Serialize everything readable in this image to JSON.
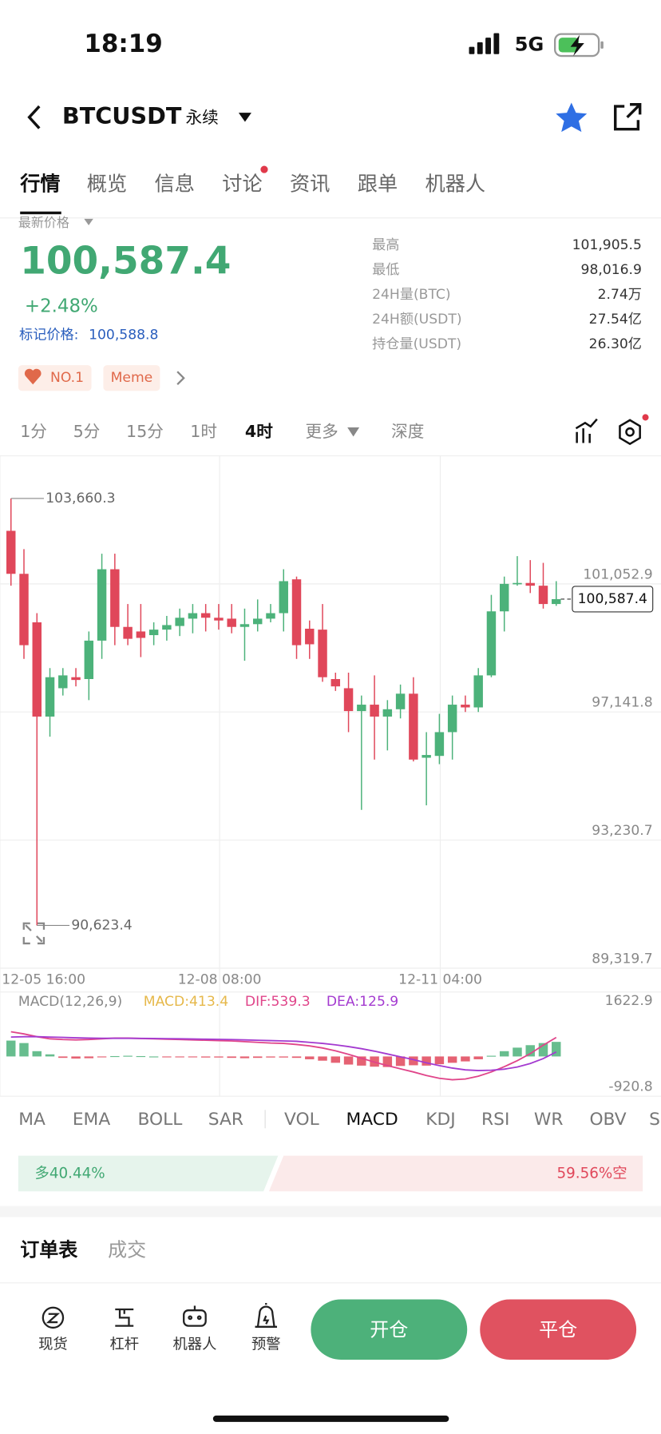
{
  "status_bar": {
    "time": "18:19",
    "network": "5G"
  },
  "header": {
    "symbol": "BTCUSDT",
    "contract": "永续"
  },
  "tabs": [
    "行情",
    "概览",
    "信息",
    "讨论",
    "资讯",
    "跟单",
    "机器人"
  ],
  "price": {
    "label": "最新价格",
    "last": "100,587.4",
    "change": "+2.48%",
    "mark_label": "标记价格:",
    "mark": "100,588.8"
  },
  "stats": [
    {
      "label": "最高",
      "value": "101,905.5"
    },
    {
      "label": "最低",
      "value": "98,016.9"
    },
    {
      "label": "24H量(BTC)",
      "value": "2.74万"
    },
    {
      "label": "24H额(USDT)",
      "value": "27.54亿"
    },
    {
      "label": "持仓量(USDT)",
      "value": "26.30亿"
    }
  ],
  "tags": [
    "NO.1",
    "Meme"
  ],
  "intervals": [
    "1分",
    "5分",
    "15分",
    "1时",
    "4时",
    "更多",
    "深度"
  ],
  "chart": {
    "type": "candlestick",
    "categories": [
      "12-05 16:00",
      null,
      null,
      null,
      null,
      null,
      null,
      null,
      null,
      null,
      null,
      null,
      null,
      null,
      null,
      null,
      "12-08 08:00",
      null,
      null,
      null,
      null,
      null,
      null,
      null,
      null,
      null,
      null,
      null,
      null,
      null,
      null,
      null,
      null,
      "12-11 04:00",
      null,
      null,
      null,
      null,
      null,
      null,
      null,
      null,
      null
    ],
    "open": [
      102673,
      101360,
      99879,
      97001,
      97867,
      98203,
      98147,
      99320,
      101500,
      99739,
      99600,
      99488,
      99656,
      99767,
      99991,
      100159,
      100019,
      99991,
      99739,
      99823,
      99991,
      100159,
      101192,
      99684,
      99656,
      98147,
      97867,
      97169,
      97365,
      97001,
      97225,
      97700,
      95744,
      95800,
      96526,
      97365,
      97281,
      98259,
      100214,
      101053,
      101081,
      100997,
      100438
    ],
    "high": [
      103660.3,
      102114,
      100159,
      98482,
      98482,
      98482,
      99600,
      101975,
      101975,
      100438,
      100438,
      99879,
      100075,
      100298,
      100438,
      100438,
      100438,
      100438,
      100298,
      100578,
      100438,
      101500,
      101276,
      99935,
      100438,
      98342,
      98342,
      97644,
      98259,
      97504,
      97979,
      98203,
      96526,
      97085,
      97644,
      97644,
      98482,
      100717,
      101276,
      101900,
      101779,
      101695,
      101136
    ],
    "low": [
      100997,
      98762,
      90623.4,
      96387,
      97644,
      97923,
      97504,
      98762,
      99181,
      99181,
      98817,
      99181,
      99320,
      99460,
      99544,
      99600,
      99656,
      99544,
      98706,
      99600,
      99879,
      99600,
      98762,
      98762,
      98063,
      97784,
      96526,
      94151,
      95688,
      95968,
      96945,
      95632,
      94291,
      95548,
      95688,
      97141,
      97141,
      98203,
      99600,
      100997,
      100773,
      100298,
      100382
    ],
    "close": [
      101360,
      99181,
      97001,
      98203,
      98259,
      98119,
      99320,
      101500,
      99739,
      99376,
      99404,
      99656,
      99795,
      100019,
      100159,
      100019,
      99935,
      99739,
      99823,
      99991,
      100159,
      101136,
      99181,
      99209,
      98203,
      97923,
      97169,
      97365,
      97001,
      97225,
      97700,
      95688,
      95828,
      96526,
      97365,
      97281,
      98259,
      100214,
      101053,
      101081,
      100997,
      100438,
      100587.4
    ],
    "up_color": "#4cb27a",
    "down_color": "#e0475a",
    "ylim": [
      89319.7,
      104964
    ],
    "yticks": [
      {
        "value": 101052.9,
        "label": "101,052.9"
      },
      {
        "value": 97141.8,
        "label": "97,141.8"
      },
      {
        "value": 93230.7,
        "label": "93,230.7"
      },
      {
        "value": 89319.7,
        "label": "89,319.7"
      }
    ],
    "high_marker": {
      "value": 103660.3,
      "label": "103,660.3"
    },
    "low_marker": {
      "value": 90623.4,
      "label": "90,623.4"
    },
    "last_price": {
      "value": 100587.4,
      "label": "100,587.4"
    },
    "grid": true,
    "macd": {
      "title": "MACD(12,26,9)",
      "macd_label": "MACD:413.4",
      "dif_label": "DIF:539.3",
      "dea_label": "DEA:125.9",
      "ylim": [
        -920.8,
        1622.9
      ],
      "yticks": [
        1622.9,
        -920.8
      ],
      "hist": [
        450,
        380,
        150,
        60,
        -40,
        -60,
        -50,
        -20,
        10,
        20,
        10,
        0,
        -10,
        -20,
        -20,
        -30,
        -30,
        -40,
        -50,
        -40,
        -30,
        -30,
        -40,
        -80,
        -120,
        -180,
        -230,
        -260,
        -290,
        -300,
        -270,
        -250,
        -260,
        -220,
        -180,
        -140,
        -80,
        20,
        150,
        250,
        320,
        380,
        413.4
      ],
      "dif": [
        700,
        640,
        560,
        500,
        480,
        470,
        480,
        500,
        520,
        520,
        510,
        500,
        490,
        480,
        470,
        460,
        450,
        440,
        420,
        400,
        380,
        370,
        340,
        300,
        240,
        160,
        60,
        -50,
        -160,
        -260,
        -350,
        -440,
        -540,
        -620,
        -660,
        -640,
        -560,
        -440,
        -290,
        -120,
        80,
        320,
        539.3
      ],
      "dea": [
        550,
        560,
        560,
        550,
        540,
        530,
        520,
        515,
        515,
        515,
        512,
        510,
        505,
        500,
        495,
        490,
        485,
        480,
        470,
        460,
        450,
        440,
        430,
        400,
        370,
        330,
        280,
        220,
        150,
        70,
        -10,
        -90,
        -180,
        -260,
        -330,
        -380,
        -400,
        -390,
        -360,
        -300,
        -200,
        -60,
        125.9
      ],
      "dif_color": "#e0458a",
      "dea_color": "#a43bd0"
    }
  },
  "indicators": [
    "MA",
    "EMA",
    "BOLL",
    "SAR",
    "VOL",
    "MACD",
    "KDJ",
    "RSI",
    "WR",
    "OBV",
    "S"
  ],
  "ratio": {
    "long": {
      "value": 40.44,
      "label": "多40.44%"
    },
    "short": {
      "value": 59.56,
      "label": "59.56%空"
    }
  },
  "order_tabs": [
    "订单表",
    "成交"
  ],
  "bottom_nav": [
    "现货",
    "杠杆",
    "机器人",
    "预警"
  ],
  "actions": [
    "开仓",
    "平仓"
  ]
}
